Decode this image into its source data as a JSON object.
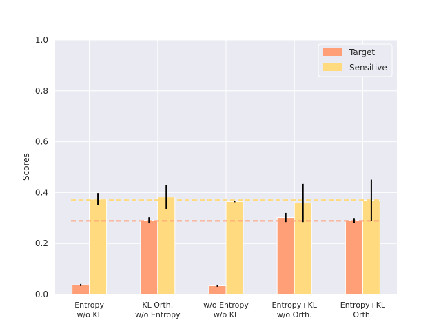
{
  "chart_data": {
    "type": "bar",
    "title": "",
    "xlabel": "",
    "ylabel": "Scores",
    "ylim": [
      0,
      1.0
    ],
    "yticks": [
      "0.0",
      "0.2",
      "0.4",
      "0.6",
      "0.8",
      "1.0"
    ],
    "grid": true,
    "legend_position": "top-right",
    "categories": [
      [
        "Entropy",
        "w/o KL"
      ],
      [
        "KL Orth.",
        "w/o Entropy"
      ],
      [
        "w/o Entropy",
        "w/o KL"
      ],
      [
        "Entropy+KL",
        "w/o Orth."
      ],
      [
        "Entropy+KL",
        "Orth."
      ]
    ],
    "series": [
      {
        "name": "Target",
        "color": "#FF9F77",
        "values": [
          0.037,
          0.291,
          0.034,
          0.302,
          0.29
        ],
        "errors": [
          0.004,
          0.012,
          0.004,
          0.018,
          0.01
        ]
      },
      {
        "name": "Sensitive",
        "color": "#FFDA7F",
        "values": [
          0.374,
          0.383,
          0.365,
          0.359,
          0.37
        ],
        "errors": [
          0.024,
          0.047,
          0.003,
          0.075,
          0.081
        ]
      }
    ],
    "reference_lines": [
      {
        "series": "Sensitive",
        "value": 0.371,
        "color": "#FFDA7F",
        "style": "dashed"
      },
      {
        "series": "Target",
        "value": 0.289,
        "color": "#FF9F77",
        "style": "dashed"
      }
    ]
  }
}
